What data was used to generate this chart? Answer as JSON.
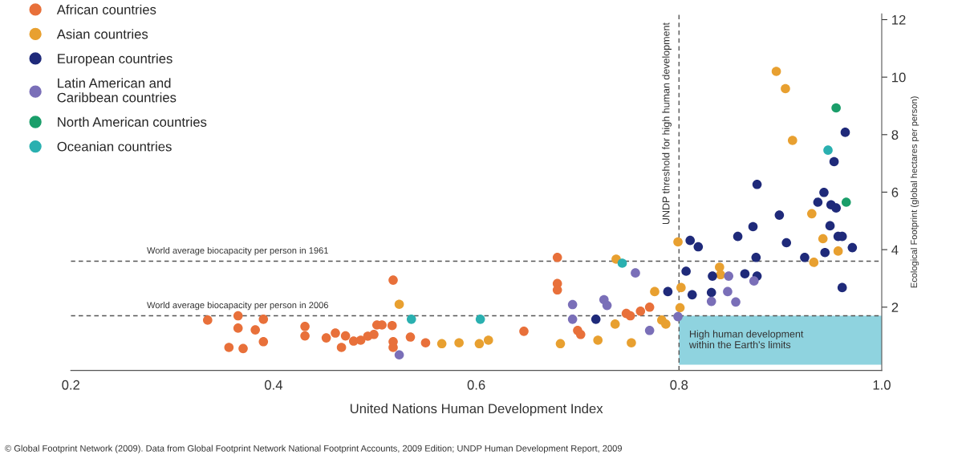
{
  "chart_data": {
    "type": "scatter",
    "xlabel": "United Nations Human Development Index",
    "ylabel": "Ecological Footprint (global hectares per person)",
    "xlim": [
      0.2,
      1.0
    ],
    "xticks": [
      0.2,
      0.4,
      0.6,
      0.8,
      {
        "value": 1.0,
        "label": "1.0"
      }
    ],
    "ylim": [
      -0.2,
      12.2
    ],
    "yticks": [
      2,
      4,
      6,
      8,
      10,
      12
    ],
    "grid": false,
    "legend": "top left",
    "marker": "circle",
    "series": [
      {
        "name": "African countries",
        "color": "#e8703a",
        "x": [
          0.335,
          0.365,
          0.365,
          0.356,
          0.37,
          0.382,
          0.39,
          0.39,
          0.431,
          0.431,
          0.452,
          0.461,
          0.467,
          0.471,
          0.479,
          0.486,
          0.493,
          0.499,
          0.502,
          0.507,
          0.518,
          0.517,
          0.518,
          0.518,
          0.535,
          0.55,
          0.647,
          0.68,
          0.68,
          0.68,
          0.7,
          0.703,
          0.748,
          0.762,
          0.771,
          0.752
        ],
        "values": [
          1.55,
          1.7,
          1.27,
          0.6,
          0.56,
          1.21,
          0.8,
          1.58,
          1.33,
          1.0,
          0.93,
          1.1,
          0.6,
          1.0,
          0.82,
          0.85,
          0.99,
          1.05,
          1.38,
          1.38,
          2.94,
          1.36,
          0.8,
          0.6,
          0.96,
          0.76,
          1.16,
          3.73,
          2.82,
          2.6,
          1.19,
          1.05,
          1.78,
          1.86,
          2.0,
          1.7
        ]
      },
      {
        "name": "Asian countries",
        "color": "#e8a030",
        "x": [
          0.524,
          0.566,
          0.583,
          0.603,
          0.612,
          0.683,
          0.72,
          0.737,
          0.753,
          0.738,
          0.776,
          0.783,
          0.896,
          0.905,
          0.912,
          0.931,
          0.942,
          0.957,
          0.933,
          0.799,
          0.84,
          0.841,
          0.802,
          0.787,
          0.801
        ],
        "values": [
          2.1,
          0.73,
          0.76,
          0.73,
          0.85,
          0.73,
          0.85,
          1.41,
          0.76,
          3.67,
          2.54,
          1.55,
          10.2,
          9.6,
          7.8,
          5.25,
          4.38,
          3.95,
          3.56,
          4.27,
          3.39,
          3.13,
          2.68,
          1.41,
          1.98
        ]
      },
      {
        "name": "European countries",
        "color": "#1f2a7a",
        "x": [
          0.718,
          0.789,
          0.811,
          0.819,
          0.807,
          0.813,
          0.832,
          0.833,
          0.858,
          0.873,
          0.877,
          0.876,
          0.865,
          0.877,
          0.899,
          0.906,
          0.924,
          0.937,
          0.943,
          0.95,
          0.955,
          0.949,
          0.957,
          0.961,
          0.944,
          0.971,
          0.953,
          0.964,
          0.961
        ],
        "values": [
          1.58,
          2.54,
          4.32,
          4.1,
          3.25,
          2.43,
          2.51,
          3.08,
          4.46,
          4.8,
          6.27,
          3.73,
          3.16,
          3.08,
          5.2,
          4.24,
          3.73,
          5.65,
          5.99,
          5.56,
          5.45,
          4.83,
          4.46,
          4.46,
          3.9,
          4.07,
          7.06,
          8.08,
          2.68
        ]
      },
      {
        "name": "Latin American and\nCaribbean countries",
        "color": "#7a6fb8",
        "x": [
          0.524,
          0.695,
          0.695,
          0.726,
          0.729,
          0.757,
          0.771,
          0.799,
          0.848,
          0.856,
          0.832,
          0.849,
          0.874
        ],
        "values": [
          0.34,
          2.09,
          1.58,
          2.26,
          2.06,
          3.19,
          1.19,
          1.67,
          2.54,
          2.18,
          2.2,
          3.08,
          2.91
        ]
      },
      {
        "name": "North American countries",
        "color": "#1a9e6a",
        "x": [
          0.955,
          0.965
        ],
        "values": [
          8.93,
          5.65
        ]
      },
      {
        "name": "Oceanian countries",
        "color": "#2ab0b0",
        "x": [
          0.947,
          0.744,
          0.604,
          0.536
        ],
        "values": [
          7.46,
          3.53,
          1.58,
          1.58
        ]
      }
    ],
    "ref_lines": [
      {
        "axis": "y",
        "value": 3.6,
        "label": "World average biocapacity per person in 1961",
        "color": "#555555",
        "line_style": "dashed"
      },
      {
        "axis": "y",
        "value": 1.7,
        "label": "World average biocapacity per person in 2006",
        "color": "#555555",
        "line_style": "dashed"
      },
      {
        "axis": "x",
        "value": 0.8,
        "label": "UNDP threshold for high human development",
        "color": "#555555",
        "line_style": "dashed"
      }
    ],
    "bands": [
      {
        "axis": "y",
        "from": 0,
        "to": 1.7,
        "label": "High human development\nwithin the Earth's limits",
        "color": "#8fd3df"
      }
    ],
    "annotations": [
      "© Global Footprint Network (2009). Data from Global Footprint Network National Footprint Accounts, 2009 Edition; UNDP Human Development Report, 2009"
    ]
  }
}
